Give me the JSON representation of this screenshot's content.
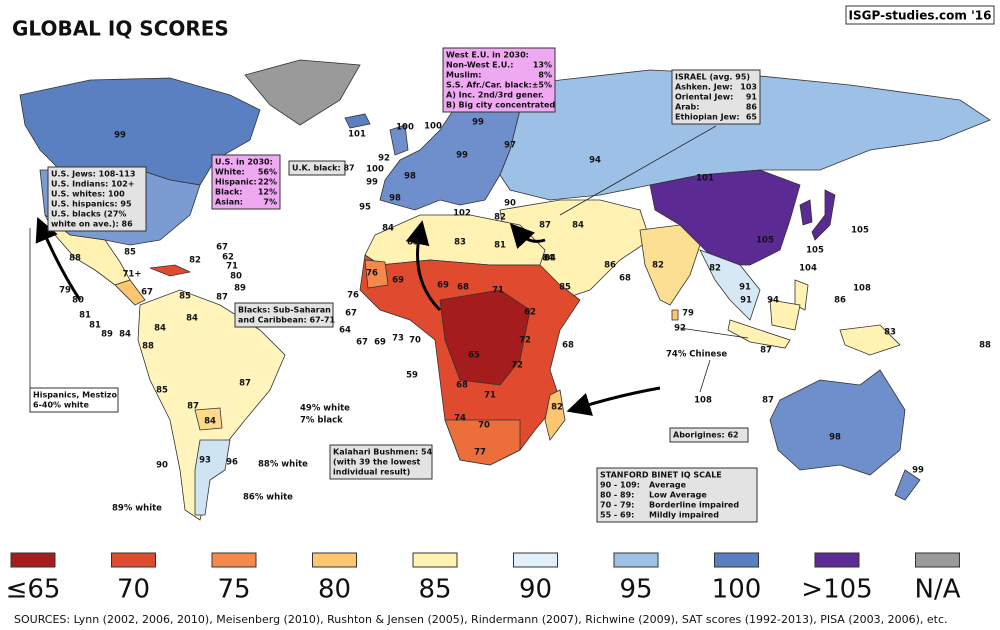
{
  "header": {
    "title": "GLOBAL IQ SCORES",
    "credit": "ISGP-studies.com '16"
  },
  "legend": [
    {
      "label": "≤65",
      "color": "#a51c1c"
    },
    {
      "label": "70",
      "color": "#e04a2f"
    },
    {
      "label": "75",
      "color": "#f4894b"
    },
    {
      "label": "80",
      "color": "#fdc66f"
    },
    {
      "label": "85",
      "color": "#fff2b3"
    },
    {
      "label": "90",
      "color": "#e0f0f8"
    },
    {
      "label": "95",
      "color": "#9dc0e6"
    },
    {
      "label": "100",
      "color": "#5b80c2"
    },
    {
      "label": ">105",
      "color": "#5b2a93"
    },
    {
      "label": "N/A",
      "color": "#9a9a9a"
    }
  ],
  "map_labels": [
    "99",
    "101",
    "88",
    "85",
    "71+",
    "67",
    "79",
    "80",
    "81",
    "81",
    "89",
    "84",
    "82",
    "67",
    "62",
    "71",
    "80",
    "89",
    "87",
    "85",
    "84",
    "84",
    "88",
    "85",
    "87",
    "87",
    "84",
    "93",
    "96",
    "90",
    "100",
    "100",
    "99",
    "97",
    "92",
    "100",
    "99",
    "98",
    "99",
    "95",
    "98",
    "90",
    "102",
    "82",
    "94",
    "101",
    "105",
    "105",
    "105",
    "104",
    "108",
    "84",
    "87",
    "84",
    "85",
    "86",
    "82",
    "68",
    "82",
    "91",
    "91",
    "94",
    "86",
    "79",
    "92",
    "83",
    "88",
    "87",
    "108",
    "87",
    "84",
    "83",
    "83",
    "81",
    "84",
    "76",
    "69",
    "69",
    "68",
    "71",
    "62",
    "68",
    "72",
    "65",
    "72",
    "68",
    "71",
    "82",
    "74",
    "70",
    "77",
    "76",
    "67",
    "64",
    "67",
    "69",
    "73",
    "70",
    "59",
    "98",
    "99"
  ],
  "notes": [
    "49% white",
    "7% black",
    "88% white",
    "86% white",
    "89% white",
    "74% Chinese"
  ],
  "boxes": [
    {
      "lines": [
        [
          "West E.U. in 2030:"
        ],
        [
          "Non-West E.U.:",
          "13%"
        ],
        [
          "Muslim:",
          "8%"
        ],
        [
          "S.S. Afr./Car. black:",
          "±5%"
        ],
        [
          "A) Inc. 2nd/3rd gener."
        ],
        [
          "B) Big city concentrated"
        ]
      ]
    },
    {
      "lines": [
        [
          "ISRAEL (avg. 95)"
        ],
        [
          "Ashken. Jew:",
          "103"
        ],
        [
          "Oriental Jew:",
          "91"
        ],
        [
          "Arab:",
          "86"
        ],
        [
          "Ethiopian Jew:",
          "65"
        ]
      ]
    },
    {
      "lines": [
        [
          "U.S. in 2030:"
        ],
        [
          "White:",
          "56%"
        ],
        [
          "Hispanic:",
          "22%"
        ],
        [
          "Black:",
          "12%"
        ],
        [
          "Asian:",
          "7%"
        ]
      ]
    },
    {
      "lines": [
        [
          "U.K. black: 87"
        ]
      ]
    },
    {
      "lines": [
        [
          "U.S. Jews: 108-113"
        ],
        [
          "U.S. Indians: 102+"
        ],
        [
          "U.S. whites: 100"
        ],
        [
          "U.S. hispanics: 95"
        ],
        [
          "U.S. blacks (27%"
        ],
        [
          "white on ave.): 86"
        ]
      ]
    },
    {
      "lines": [
        [
          "Blacks: Sub-Saharan"
        ],
        [
          "and Caribbean: 67-71"
        ]
      ]
    },
    {
      "lines": [
        [
          "Hispanics, Mestizo"
        ],
        [
          "6-40% white"
        ]
      ]
    },
    {
      "lines": [
        [
          "Kalahari Bushmen: 54"
        ],
        [
          "(with 39 the lowest"
        ],
        [
          "individual result)"
        ]
      ]
    },
    {
      "lines": [
        [
          "Aborigines: 62"
        ]
      ]
    },
    {
      "lines": [
        [
          "STANFORD BINET IQ SCALE"
        ],
        [
          "90 - 109:",
          "Average"
        ],
        [
          "80 - 89:",
          "Low Average"
        ],
        [
          "70 - 79:",
          "Borderline impaired"
        ],
        [
          "55 - 69:",
          "Mildly impaired"
        ]
      ]
    }
  ],
  "sources": "SOURCES: Lynn (2002, 2006, 2010), Meisenberg (2010), Rushton & Jensen (2005), Rindermann (2007), Richwine (2009), SAT scores (1992-2013), PISA (2003, 2006), etc."
}
